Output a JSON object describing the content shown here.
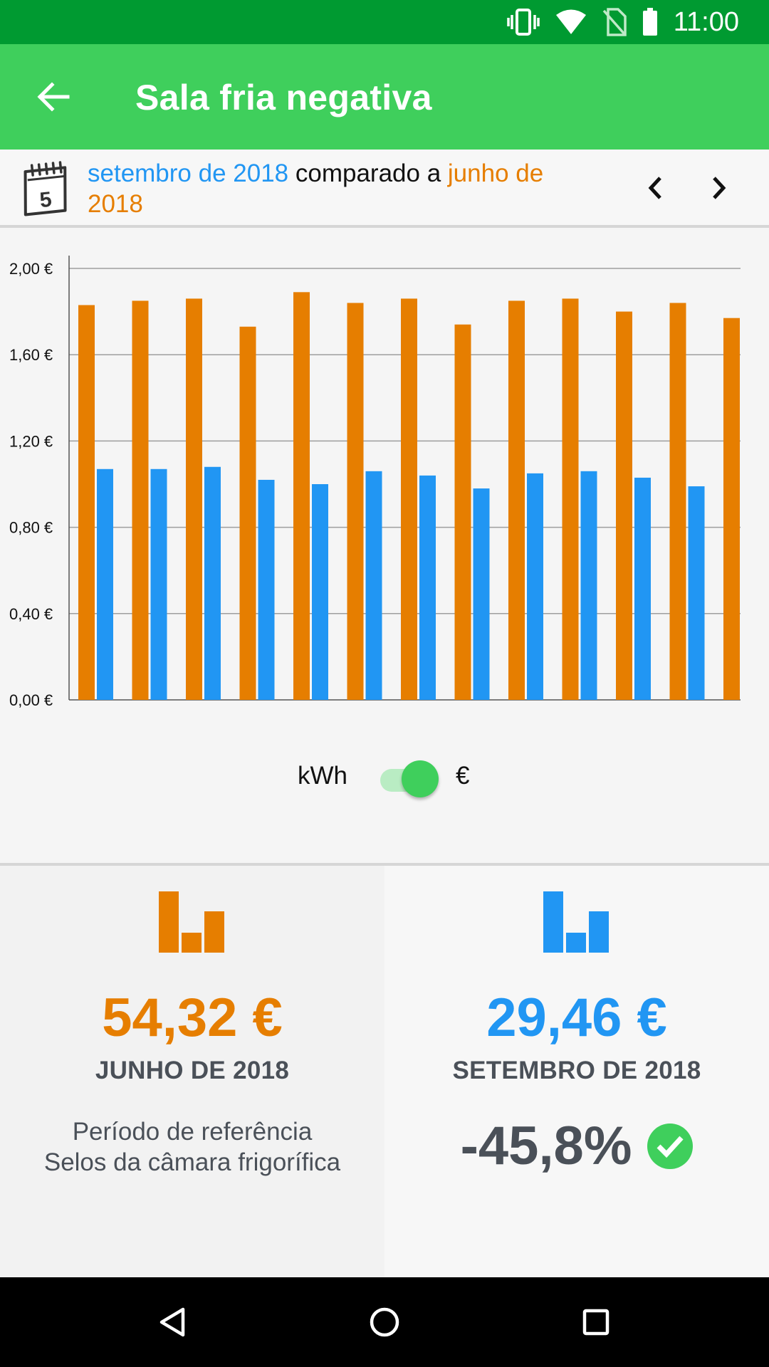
{
  "status_bar": {
    "time": "11:00",
    "icons": [
      "vibrate-icon",
      "wifi-icon",
      "no-sim-icon",
      "battery-icon"
    ]
  },
  "app_bar": {
    "title": "Sala fria negativa",
    "back_icon": "arrow-left-icon"
  },
  "period": {
    "current_label": "setembro de 2018",
    "connector": " comparado a ",
    "reference_label": "junho de 2018",
    "icon": "calendar-icon",
    "prev_icon": "chevron-left-icon",
    "next_icon": "chevron-right-icon"
  },
  "colors": {
    "reference": "#e67e00",
    "current": "#2196f3",
    "accent": "#3fcf5c",
    "status_bar": "#009a31"
  },
  "chart_data": {
    "type": "bar",
    "categories": [
      "",
      "",
      "",
      "",
      "",
      "",
      "",
      "",
      "",
      "",
      "",
      "",
      ""
    ],
    "series": [
      {
        "color": "#e67e00",
        "values": [
          1.83,
          1.85,
          1.86,
          1.73,
          1.89,
          1.84,
          1.86,
          1.74,
          1.85,
          1.86,
          1.8,
          1.84,
          1.77
        ]
      },
      {
        "color": "#2196f3",
        "values": [
          1.07,
          1.07,
          1.08,
          1.02,
          1.0,
          1.06,
          1.04,
          0.98,
          1.05,
          1.06,
          1.03,
          0.99,
          null
        ]
      }
    ],
    "yticks": [
      "0,00 €",
      "0,40 €",
      "0,80 €",
      "1,20 €",
      "1,60 €",
      "2,00 €"
    ],
    "ylim": [
      0,
      2.0
    ],
    "grid": true,
    "title": "",
    "xlabel": "",
    "ylabel": ""
  },
  "unit_toggle": {
    "left_label": "kWh",
    "right_label": "€",
    "selected": "€"
  },
  "summary": {
    "reference": {
      "amount": "54,32 €",
      "label": "JUNHO DE 2018",
      "sub_line1": "Período de referência",
      "sub_line2": "Selos da câmara frigorífica",
      "icon": "bar-chart-icon"
    },
    "current": {
      "amount": "29,46 €",
      "label": "SETEMBRO DE 2018",
      "delta": "-45,8%",
      "icon": "bar-chart-icon",
      "status_icon": "check-circle-icon"
    }
  },
  "nav_bar": {
    "back": "back-triangle-icon",
    "home": "home-circle-icon",
    "recents": "recents-square-icon"
  }
}
